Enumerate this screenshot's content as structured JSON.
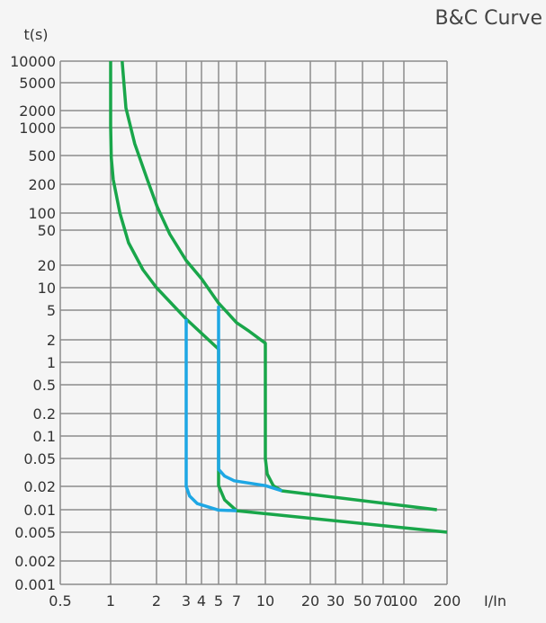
{
  "chart_data": {
    "type": "line",
    "title": "B&C Curve",
    "xlabel": "I/In",
    "ylabel": "t(s)",
    "x_scale": "log-like (non-uniform tick spacing)",
    "y_scale": "log-like (non-uniform tick spacing)",
    "xlim": [
      0.5,
      200
    ],
    "ylim": [
      0.001,
      10000
    ],
    "grid": true,
    "x_ticks": [
      "0.5",
      "1",
      "2",
      "3",
      "4",
      "5",
      "7",
      "10",
      "20",
      "30",
      "50",
      "70",
      "100",
      "200"
    ],
    "y_ticks": [
      "10000",
      "5000",
      "2000",
      "1000",
      "500",
      "200",
      "100",
      "50",
      "20",
      "10",
      "5",
      "2",
      "1",
      "0.5",
      "0.2",
      "0.1",
      "0.05",
      "0.02",
      "0.01",
      "0.005",
      "0.002",
      "0.001"
    ],
    "series": [
      {
        "color": "#19a64a",
        "points": [
          [
            1,
            10000
          ],
          [
            1,
            1070
          ],
          [
            1.01,
            470
          ],
          [
            1.04,
            232
          ],
          [
            1.15,
            100
          ],
          [
            1.31,
            36
          ],
          [
            1.63,
            17.4
          ],
          [
            2,
            10
          ],
          [
            3,
            3.8
          ],
          [
            5,
            1.5
          ],
          [
            5,
            0.0205
          ],
          [
            5.6,
            0.0134
          ],
          [
            7,
            0.0097
          ],
          [
            200,
            0.005
          ]
        ]
      },
      {
        "color": "#19a64a",
        "points": [
          [
            1.19,
            10000
          ],
          [
            1.26,
            2180
          ],
          [
            1.44,
            670
          ],
          [
            1.74,
            232
          ],
          [
            2.02,
            116
          ],
          [
            2.4,
            45
          ],
          [
            3,
            22.6
          ],
          [
            4,
            13.2
          ],
          [
            5,
            6.2
          ],
          [
            7,
            3.4
          ],
          [
            8.2,
            2.6
          ],
          [
            10,
            1.8
          ],
          [
            10,
            0.05
          ],
          [
            10.3,
            0.03
          ],
          [
            11.3,
            0.0205
          ],
          [
            12.9,
            0.0175
          ],
          [
            170,
            0.01
          ]
        ]
      },
      {
        "color": "#1ea7e4",
        "points": [
          [
            3,
            3.8
          ],
          [
            3,
            0.02
          ],
          [
            3.2,
            0.015
          ],
          [
            3.7,
            0.012
          ],
          [
            5,
            0.0099
          ],
          [
            7,
            0.0097
          ]
        ]
      },
      {
        "color": "#1ea7e4",
        "points": [
          [
            5,
            5.7
          ],
          [
            5,
            0.035
          ],
          [
            5.6,
            0.028
          ],
          [
            6.7,
            0.024
          ],
          [
            10,
            0.0205
          ],
          [
            12.9,
            0.0175
          ]
        ]
      }
    ]
  }
}
